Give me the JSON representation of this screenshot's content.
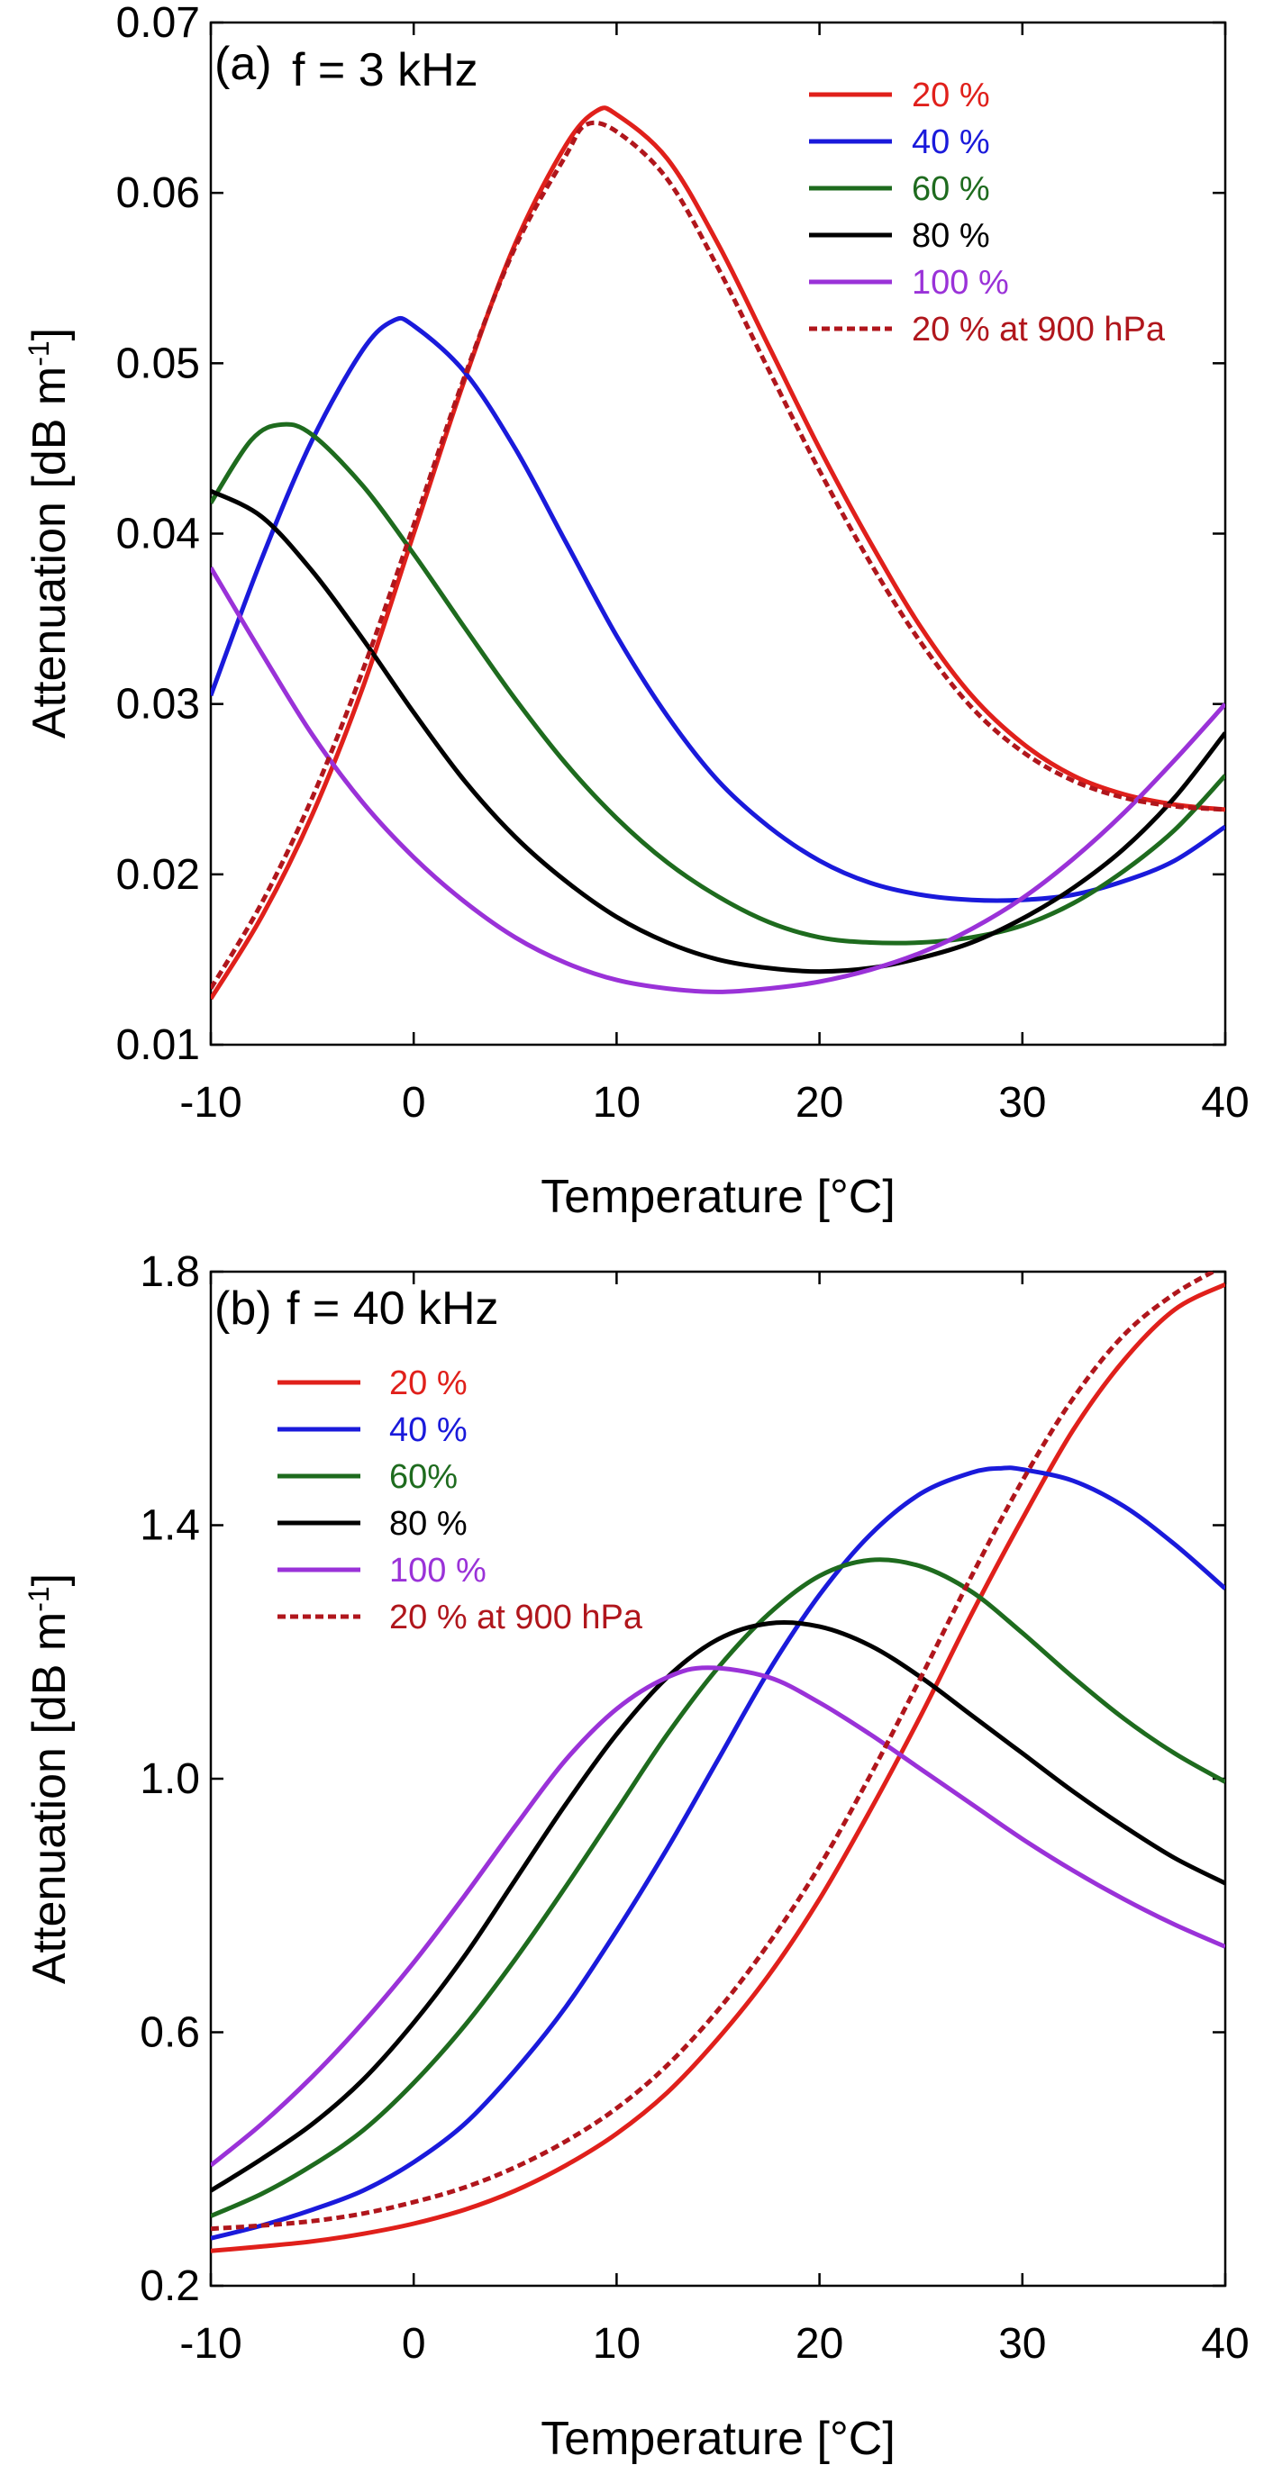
{
  "chart_data": [
    {
      "type": "line",
      "panel_label": "(a)",
      "title": "f = 3 kHz",
      "xlabel": "Temperature [°C]",
      "ylabel_main": "Attenuation  [dB m",
      "ylabel_sup": "-1",
      "ylabel_end": "]",
      "xlim": [
        -10,
        40
      ],
      "ylim": [
        0.01,
        0.07
      ],
      "xticks": [
        "-10",
        "0",
        "10",
        "20",
        "30",
        "40"
      ],
      "xtick_values": [
        -10,
        0,
        10,
        20,
        30,
        40
      ],
      "yticks": [
        "0.01",
        "0.02",
        "0.03",
        "0.04",
        "0.05",
        "0.06",
        "0.07"
      ],
      "ytick_values": [
        0.01,
        0.02,
        0.03,
        0.04,
        0.05,
        0.06,
        0.07
      ],
      "grid": false,
      "legend_position": "top-right",
      "series": [
        {
          "name": "20 %",
          "color": "#e0201b",
          "style": "solid",
          "x": [
            -10,
            -7.5,
            -5,
            -2.5,
            0,
            2.5,
            5,
            7.5,
            9,
            10,
            12.5,
            15,
            17.5,
            20,
            22.5,
            25,
            27.5,
            30,
            32.5,
            35,
            37.5,
            40
          ],
          "y": [
            0.0127,
            0.0175,
            0.0235,
            0.031,
            0.04,
            0.049,
            0.057,
            0.0628,
            0.0648,
            0.0646,
            0.062,
            0.057,
            0.051,
            0.045,
            0.0395,
            0.0345,
            0.0305,
            0.0277,
            0.0258,
            0.0247,
            0.0241,
            0.0238
          ]
        },
        {
          "name": "40 %",
          "color": "#1a1adb",
          "style": "solid",
          "x": [
            -10,
            -7.5,
            -5,
            -2.5,
            -1,
            0,
            2.5,
            5,
            7.5,
            10,
            12.5,
            15,
            17.5,
            20,
            22.5,
            25,
            27.5,
            30,
            32.5,
            35,
            37.5,
            40
          ],
          "y": [
            0.0305,
            0.0385,
            0.0455,
            0.0508,
            0.0525,
            0.0522,
            0.0495,
            0.045,
            0.0395,
            0.034,
            0.0293,
            0.0255,
            0.0228,
            0.0208,
            0.0195,
            0.0188,
            0.0185,
            0.0185,
            0.0188,
            0.0196,
            0.0208,
            0.0228
          ]
        },
        {
          "name": "60 %",
          "color": "#1e6b1e",
          "style": "solid",
          "x": [
            -10,
            -8,
            -6.5,
            -5,
            -2.5,
            0,
            2.5,
            5,
            7.5,
            10,
            12.5,
            15,
            17.5,
            20,
            22.5,
            25,
            27.5,
            30,
            32.5,
            35,
            37.5,
            40
          ],
          "y": [
            0.0418,
            0.0455,
            0.0464,
            0.0458,
            0.0428,
            0.0388,
            0.0345,
            0.0303,
            0.0265,
            0.0233,
            0.0207,
            0.0187,
            0.0172,
            0.0163,
            0.016,
            0.016,
            0.0163,
            0.017,
            0.0183,
            0.0202,
            0.0226,
            0.0258
          ]
        },
        {
          "name": "80 %",
          "color": "#000000",
          "style": "solid",
          "x": [
            -10,
            -7.5,
            -5,
            -2.5,
            0,
            2.5,
            5,
            7.5,
            10,
            12.5,
            15,
            17.5,
            20,
            22.5,
            25,
            27.5,
            30,
            32.5,
            35,
            37.5,
            40
          ],
          "y": [
            0.0425,
            0.041,
            0.0378,
            0.0338,
            0.0295,
            0.0255,
            0.0222,
            0.0196,
            0.0175,
            0.016,
            0.015,
            0.0145,
            0.0143,
            0.0145,
            0.0151,
            0.016,
            0.0174,
            0.0192,
            0.0215,
            0.0245,
            0.0283
          ]
        },
        {
          "name": "100 %",
          "color": "#9a32d8",
          "style": "solid",
          "x": [
            -10,
            -7.5,
            -5,
            -2.5,
            0,
            2.5,
            5,
            7.5,
            10,
            12.5,
            15,
            17.5,
            20,
            22.5,
            25,
            27.5,
            30,
            32.5,
            35,
            37.5,
            40
          ],
          "y": [
            0.038,
            0.033,
            0.0282,
            0.0242,
            0.021,
            0.0184,
            0.0163,
            0.0148,
            0.0138,
            0.0133,
            0.0131,
            0.0133,
            0.0137,
            0.0144,
            0.0154,
            0.0168,
            0.0186,
            0.0209,
            0.0236,
            0.0267,
            0.03
          ]
        },
        {
          "name": "20 % at 900 hPa",
          "color": "#b0161c",
          "style": "dashed",
          "x": [
            -10,
            -7.5,
            -5,
            -2.5,
            0,
            2.5,
            5,
            7.5,
            8.5,
            10,
            12.5,
            15,
            17.5,
            20,
            22.5,
            25,
            27.5,
            30,
            32.5,
            35,
            37.5,
            40
          ],
          "y": [
            0.0133,
            0.0183,
            0.0245,
            0.032,
            0.0405,
            0.0492,
            0.0568,
            0.0622,
            0.064,
            0.0636,
            0.0608,
            0.0556,
            0.0496,
            0.0437,
            0.0383,
            0.0336,
            0.0298,
            0.0272,
            0.0255,
            0.0245,
            0.024,
            0.0238
          ]
        }
      ]
    },
    {
      "type": "line",
      "panel_label": "(b)",
      "title": "f = 40 kHz",
      "xlabel": "Temperature [°C]",
      "ylabel_main": "Attenuation  [dB m",
      "ylabel_sup": "-1",
      "ylabel_end": "]",
      "xlim": [
        -10,
        40
      ],
      "ylim": [
        0.2,
        1.8
      ],
      "xticks": [
        "-10",
        "0",
        "10",
        "20",
        "30",
        "40"
      ],
      "xtick_values": [
        -10,
        0,
        10,
        20,
        30,
        40
      ],
      "yticks": [
        "0.2",
        "0.6",
        "1.0",
        "1.4",
        "1.8"
      ],
      "ytick_values": [
        0.2,
        0.6,
        1.0,
        1.4,
        1.8
      ],
      "grid": false,
      "legend_position": "top-left",
      "series": [
        {
          "name": "20 %",
          "color": "#e0201b",
          "style": "solid",
          "x": [
            -10,
            -7.5,
            -5,
            -2.5,
            0,
            2.5,
            5,
            7.5,
            10,
            12.5,
            15,
            17.5,
            20,
            22.5,
            25,
            27.5,
            30,
            32.5,
            35,
            37.5,
            40
          ],
          "y": [
            0.255,
            0.262,
            0.27,
            0.282,
            0.298,
            0.32,
            0.35,
            0.39,
            0.44,
            0.505,
            0.59,
            0.69,
            0.81,
            0.95,
            1.1,
            1.26,
            1.41,
            1.55,
            1.66,
            1.74,
            1.78
          ]
        },
        {
          "name": "40 %",
          "color": "#1a1adb",
          "style": "solid",
          "x": [
            -10,
            -7.5,
            -5,
            -2.5,
            0,
            2.5,
            5,
            7.5,
            10,
            12.5,
            15,
            17.5,
            20,
            22.5,
            25,
            27.5,
            29,
            30,
            32.5,
            35,
            37.5,
            40
          ],
          "y": [
            0.275,
            0.295,
            0.32,
            0.35,
            0.395,
            0.455,
            0.54,
            0.64,
            0.76,
            0.89,
            1.03,
            1.17,
            1.29,
            1.385,
            1.45,
            1.483,
            1.49,
            1.488,
            1.47,
            1.43,
            1.37,
            1.3
          ]
        },
        {
          "name": "60%",
          "color": "#1e6b1e",
          "style": "solid",
          "x": [
            -10,
            -7.5,
            -5,
            -2.5,
            0,
            2.5,
            5,
            7.5,
            10,
            12.5,
            15,
            17.5,
            20,
            22.5,
            25,
            27.5,
            30,
            32.5,
            35,
            37.5,
            40
          ],
          "y": [
            0.31,
            0.345,
            0.39,
            0.445,
            0.52,
            0.61,
            0.715,
            0.83,
            0.95,
            1.07,
            1.175,
            1.26,
            1.32,
            1.345,
            1.335,
            1.295,
            1.23,
            1.16,
            1.095,
            1.04,
            0.995
          ]
        },
        {
          "name": "80 %",
          "color": "#000000",
          "style": "solid",
          "x": [
            -10,
            -7.5,
            -5,
            -2.5,
            0,
            2.5,
            5,
            7.5,
            10,
            12.5,
            15,
            17.5,
            20,
            22.5,
            25,
            27.5,
            30,
            32.5,
            35,
            37.5,
            40
          ],
          "y": [
            0.35,
            0.4,
            0.455,
            0.525,
            0.615,
            0.72,
            0.84,
            0.96,
            1.07,
            1.16,
            1.22,
            1.245,
            1.24,
            1.21,
            1.16,
            1.1,
            1.04,
            0.98,
            0.925,
            0.875,
            0.835
          ]
        },
        {
          "name": "100 %",
          "color": "#9a32d8",
          "style": "solid",
          "x": [
            -10,
            -7.5,
            -5,
            -2.5,
            0,
            2.5,
            5,
            7.5,
            10,
            12.5,
            14.5,
            17.5,
            20,
            22.5,
            25,
            27.5,
            30,
            32.5,
            35,
            37.5,
            40
          ],
          "y": [
            0.39,
            0.455,
            0.53,
            0.615,
            0.71,
            0.815,
            0.925,
            1.03,
            1.11,
            1.16,
            1.175,
            1.16,
            1.12,
            1.07,
            1.015,
            0.96,
            0.905,
            0.855,
            0.81,
            0.77,
            0.735
          ]
        },
        {
          "name": "20 % at 900 hPa",
          "color": "#b0161c",
          "style": "dashed",
          "x": [
            -10,
            -7.5,
            -5,
            -2.5,
            0,
            2.5,
            5,
            7.5,
            10,
            12.5,
            15,
            17.5,
            20,
            22.5,
            25,
            27.5,
            30,
            32.5,
            35,
            37.5,
            40
          ],
          "y": [
            0.29,
            0.295,
            0.302,
            0.314,
            0.332,
            0.355,
            0.387,
            0.428,
            0.48,
            0.548,
            0.635,
            0.74,
            0.862,
            1.005,
            1.16,
            1.32,
            1.47,
            1.6,
            1.7,
            1.765,
            1.81
          ]
        }
      ]
    }
  ]
}
